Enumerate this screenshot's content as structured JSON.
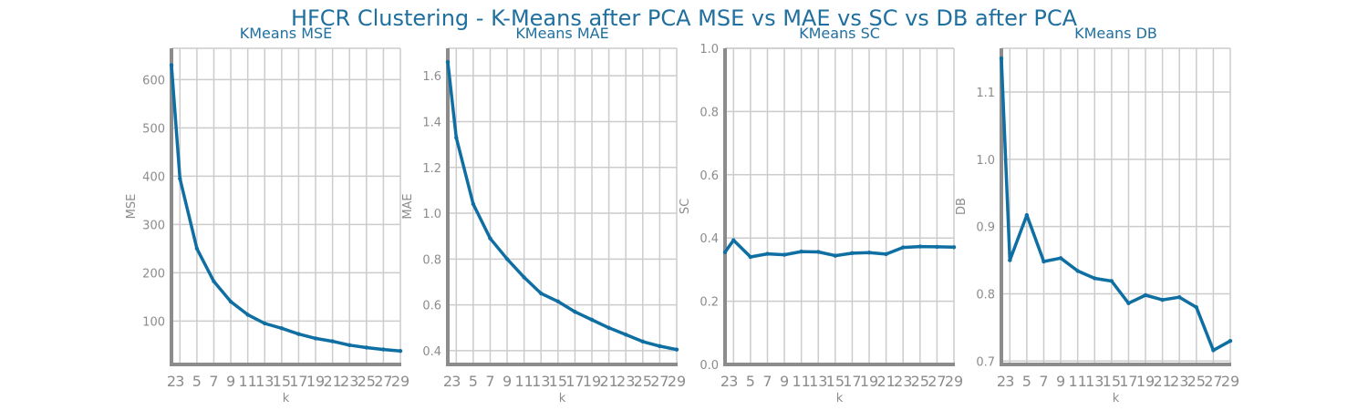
{
  "figure": {
    "title": "HFCR Clustering - K-Means after PCA MSE vs MAE vs SC vs DB after PCA"
  },
  "colors": {
    "title": "#1f6f9f",
    "series": "#0f6fa3",
    "grid": "#cccccc",
    "axis": "#8c8c8c"
  },
  "chart_data": [
    {
      "type": "line",
      "title": "KMeans MSE",
      "xlabel": "k",
      "ylabel": "MSE",
      "grid": true,
      "xlim": [
        2,
        29
      ],
      "ylim": [
        10,
        665
      ],
      "xticks": [
        2,
        3,
        5,
        7,
        9,
        11,
        13,
        15,
        17,
        19,
        21,
        23,
        25,
        27,
        29
      ],
      "yticks": [
        100,
        200,
        300,
        400,
        500,
        600
      ],
      "ytick_labels": [
        "100",
        "200",
        "300",
        "400",
        "500",
        "600"
      ],
      "series": [
        {
          "x": [
            2,
            3,
            5,
            7,
            9,
            11,
            13,
            15,
            17,
            19,
            21,
            23,
            25,
            27,
            29
          ],
          "values": [
            630,
            395,
            250,
            182,
            140,
            113,
            95,
            85,
            73,
            64,
            58,
            50,
            45,
            41,
            38
          ]
        }
      ]
    },
    {
      "type": "line",
      "title": "KMeans MAE",
      "xlabel": "k",
      "ylabel": "MAE",
      "grid": true,
      "xlim": [
        2,
        29
      ],
      "ylim": [
        0.34,
        1.72
      ],
      "xticks": [
        2,
        3,
        5,
        7,
        9,
        11,
        13,
        15,
        17,
        19,
        21,
        23,
        25,
        27,
        29
      ],
      "yticks": [
        0.4,
        0.6,
        0.8,
        1.0,
        1.2,
        1.4,
        1.6
      ],
      "ytick_labels": [
        "0.4",
        "0.6",
        "0.8",
        "1.0",
        "1.2",
        "1.4",
        "1.6"
      ],
      "series": [
        {
          "x": [
            2,
            3,
            5,
            7,
            9,
            11,
            13,
            15,
            17,
            19,
            21,
            23,
            25,
            27,
            29
          ],
          "values": [
            1.66,
            1.33,
            1.04,
            0.89,
            0.8,
            0.72,
            0.65,
            0.615,
            0.57,
            0.535,
            0.5,
            0.47,
            0.44,
            0.42,
            0.405
          ]
        }
      ]
    },
    {
      "type": "line",
      "title": "KMeans SC",
      "xlabel": "k",
      "ylabel": "SC",
      "grid": true,
      "xlim": [
        2,
        29
      ],
      "ylim": [
        0.0,
        1.0
      ],
      "xticks": [
        2,
        3,
        5,
        7,
        9,
        11,
        13,
        15,
        17,
        19,
        21,
        23,
        25,
        27,
        29
      ],
      "yticks": [
        0.0,
        0.2,
        0.4,
        0.6,
        0.8,
        1.0
      ],
      "ytick_labels": [
        "0.0",
        "0.2",
        "0.4",
        "0.6",
        "0.8",
        "1.0"
      ],
      "series": [
        {
          "x": [
            2,
            3,
            5,
            7,
            9,
            11,
            13,
            15,
            17,
            19,
            21,
            23,
            25,
            27,
            29
          ],
          "values": [
            0.355,
            0.393,
            0.34,
            0.35,
            0.347,
            0.357,
            0.356,
            0.344,
            0.352,
            0.354,
            0.349,
            0.37,
            0.373,
            0.372,
            0.371
          ]
        }
      ]
    },
    {
      "type": "line",
      "title": "KMeans DB",
      "xlabel": "k",
      "ylabel": "DB",
      "grid": true,
      "xlim": [
        2,
        29
      ],
      "ylim": [
        0.695,
        1.165
      ],
      "xticks": [
        2,
        3,
        5,
        7,
        9,
        11,
        13,
        15,
        17,
        19,
        21,
        23,
        25,
        27,
        29
      ],
      "yticks": [
        0.7,
        0.8,
        0.9,
        1.0,
        1.1
      ],
      "ytick_labels": [
        "0.7",
        "0.8",
        "0.9",
        "1.0",
        "1.1"
      ],
      "series": [
        {
          "x": [
            2,
            3,
            5,
            7,
            9,
            11,
            13,
            15,
            17,
            19,
            21,
            23,
            25,
            27,
            29
          ],
          "values": [
            1.15,
            0.85,
            0.917,
            0.848,
            0.853,
            0.834,
            0.823,
            0.819,
            0.786,
            0.798,
            0.791,
            0.795,
            0.78,
            0.716,
            0.73
          ]
        }
      ]
    }
  ]
}
